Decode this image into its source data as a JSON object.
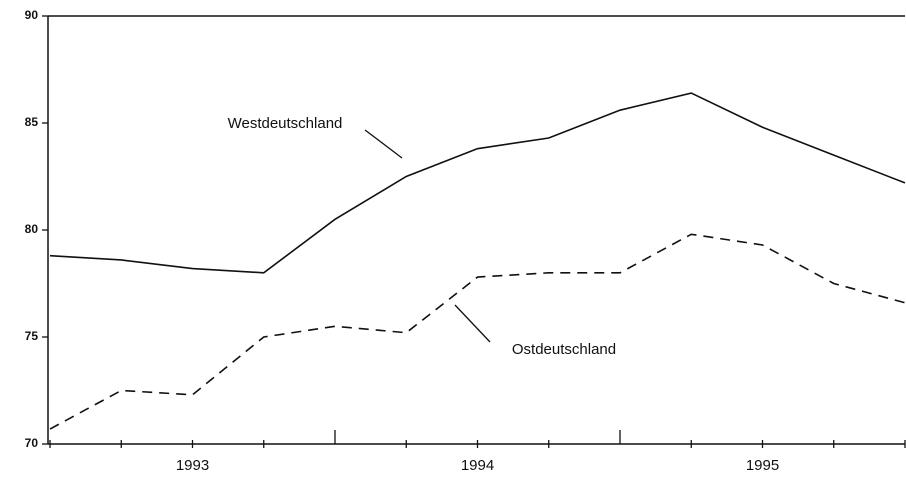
{
  "chart_data": {
    "type": "line",
    "categories": [
      null,
      null,
      "1993",
      null,
      null,
      null,
      "1994",
      null,
      null,
      null,
      "1995",
      null,
      null
    ],
    "series": [
      {
        "name": "Westdeutschland",
        "color": "#111111",
        "style": "solid",
        "values": [
          78.8,
          78.6,
          78.2,
          78.0,
          80.5,
          82.5,
          83.8,
          84.3,
          85.6,
          86.4,
          84.8,
          83.5,
          82.2
        ]
      },
      {
        "name": "Ostdeutschland",
        "color": "#111111",
        "style": "dashed",
        "values": [
          70.7,
          72.5,
          72.3,
          75.0,
          75.5,
          75.2,
          77.8,
          78.0,
          78.0,
          79.8,
          79.3,
          77.5,
          76.6
        ]
      }
    ],
    "ylim": [
      70,
      90
    ],
    "yticks": [
      70,
      75,
      80,
      85,
      90
    ]
  }
}
